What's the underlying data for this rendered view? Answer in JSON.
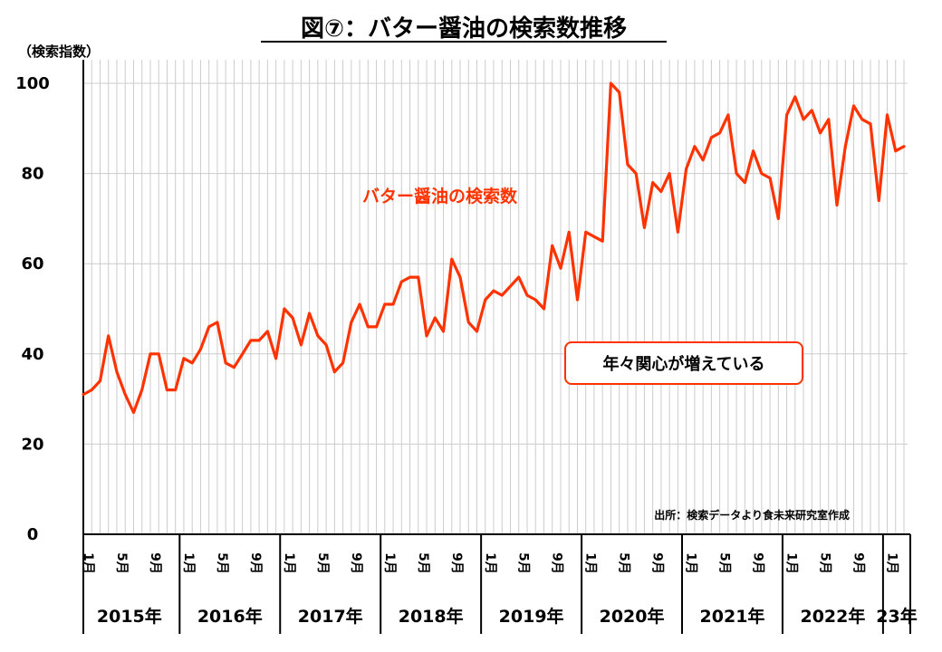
{
  "chart_data": {
    "type": "line",
    "title": "図⑦：バター醤油の検索数推移",
    "ylabel": "（検索指数）",
    "ylim": [
      0,
      100
    ],
    "yticks": [
      "0",
      "20",
      "40",
      "60",
      "80",
      "100"
    ],
    "month_tick_labels": [
      "1月",
      "5月",
      "9月"
    ],
    "year_labels": [
      "2015年",
      "2016年",
      "2017年",
      "2018年",
      "2019年",
      "2020年",
      "2021年",
      "2022年",
      "23年"
    ],
    "series": [
      {
        "name": "バター醤油の検索数",
        "color": "#ff3300",
        "start": "2015-01",
        "values": [
          31,
          32,
          34,
          44,
          36,
          31,
          27,
          32,
          40,
          40,
          32,
          32,
          39,
          38,
          41,
          46,
          47,
          38,
          37,
          40,
          43,
          43,
          45,
          39,
          50,
          48,
          42,
          49,
          44,
          42,
          36,
          38,
          47,
          51,
          46,
          46,
          51,
          51,
          56,
          57,
          57,
          44,
          48,
          45,
          61,
          57,
          47,
          45,
          52,
          54,
          53,
          55,
          57,
          53,
          52,
          50,
          64,
          59,
          67,
          52,
          67,
          66,
          65,
          100,
          98,
          82,
          80,
          68,
          78,
          76,
          80,
          67,
          81,
          86,
          83,
          88,
          89,
          93,
          80,
          78,
          85,
          80,
          79,
          70,
          93,
          97,
          92,
          94,
          89,
          92,
          73,
          86,
          95,
          92,
          91,
          74,
          93,
          85,
          86
        ]
      }
    ],
    "annotation": "年々関心が増えている",
    "source": "出所：検索データより食未来研究室作成"
  },
  "colors": {
    "line": "#ff3300",
    "annotation_border": "#ff3300",
    "grid": "#cccccc",
    "axis": "#000000"
  }
}
